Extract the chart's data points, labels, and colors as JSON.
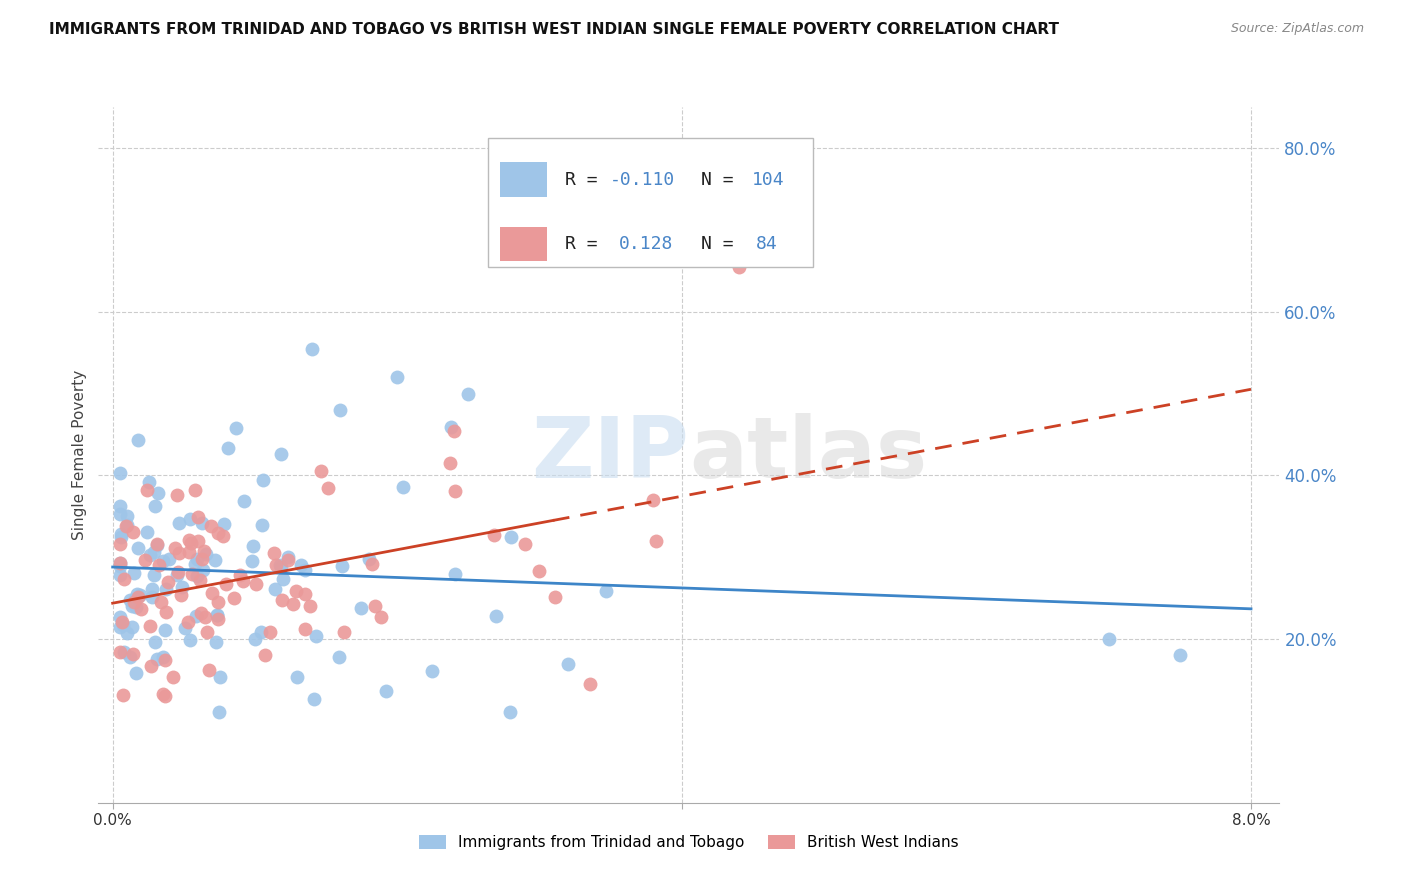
{
  "title": "IMMIGRANTS FROM TRINIDAD AND TOBAGO VS BRITISH WEST INDIAN SINGLE FEMALE POVERTY CORRELATION CHART",
  "source": "Source: ZipAtlas.com",
  "ylabel": "Single Female Poverty",
  "legend_label1": "Immigrants from Trinidad and Tobago",
  "legend_label2": "British West Indians",
  "legend_R1": "-0.110",
  "legend_N1": "104",
  "legend_R2": "0.128",
  "legend_N2": "84",
  "color_blue": "#9fc5e8",
  "color_pink": "#ea9999",
  "color_trendline_blue": "#3d85c8",
  "color_trendline_pink": "#cc4125",
  "color_axis_right": "#4a86c8",
  "xlim": [
    0.0,
    0.08
  ],
  "ylim": [
    0.0,
    0.85
  ],
  "yticks": [
    0.2,
    0.4,
    0.6,
    0.8
  ],
  "ytick_labels": [
    "20.0%",
    "40.0%",
    "60.0%",
    "80.0%"
  ]
}
